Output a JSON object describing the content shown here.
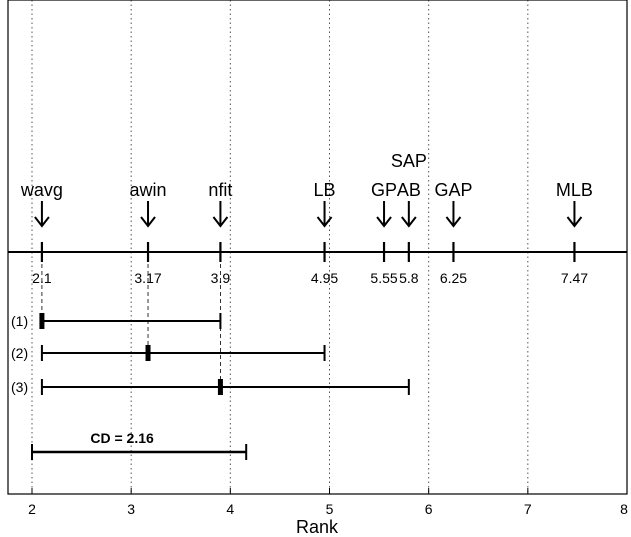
{
  "chart_data": {
    "type": "critical-difference",
    "xlabel": "Rank",
    "xlim": [
      1.75,
      8
    ],
    "x_ticks": [
      2,
      3,
      4,
      5,
      6,
      7,
      8
    ],
    "x_tick_labels": [
      "2",
      "3",
      "4",
      "5",
      "6",
      "7",
      "8"
    ],
    "grid": "vertical dotted",
    "methods": [
      {
        "name": "wavg",
        "rank": 2.1,
        "rank_label": "2.1"
      },
      {
        "name": "awin",
        "rank": 3.17,
        "rank_label": "3.17"
      },
      {
        "name": "nfit",
        "rank": 3.9,
        "rank_label": "3.9"
      },
      {
        "name": "LB",
        "rank": 4.95,
        "rank_label": "4.95"
      },
      {
        "name": "GP",
        "rank": 5.55,
        "rank_label": "5.55"
      },
      {
        "name": "AB",
        "rank": 5.8,
        "rank_label": "5.8"
      },
      {
        "name": "GAP",
        "rank": 6.25,
        "rank_label": "6.25"
      },
      {
        "name": "MLB",
        "rank": 7.47,
        "rank_label": "7.47"
      }
    ],
    "extra_label": {
      "text": "SAP",
      "rank": 5.8
    },
    "intervals": [
      {
        "label": "(1)",
        "start": 2.1,
        "end": 3.9,
        "marker": 2.1
      },
      {
        "label": "(2)",
        "start": 2.1,
        "end": 4.95,
        "marker": 3.17
      },
      {
        "label": "(3)",
        "start": 2.1,
        "end": 5.8,
        "marker": 3.9
      }
    ],
    "cd": {
      "label": "CD = 2.16",
      "start": 2.0,
      "end": 4.16
    }
  }
}
